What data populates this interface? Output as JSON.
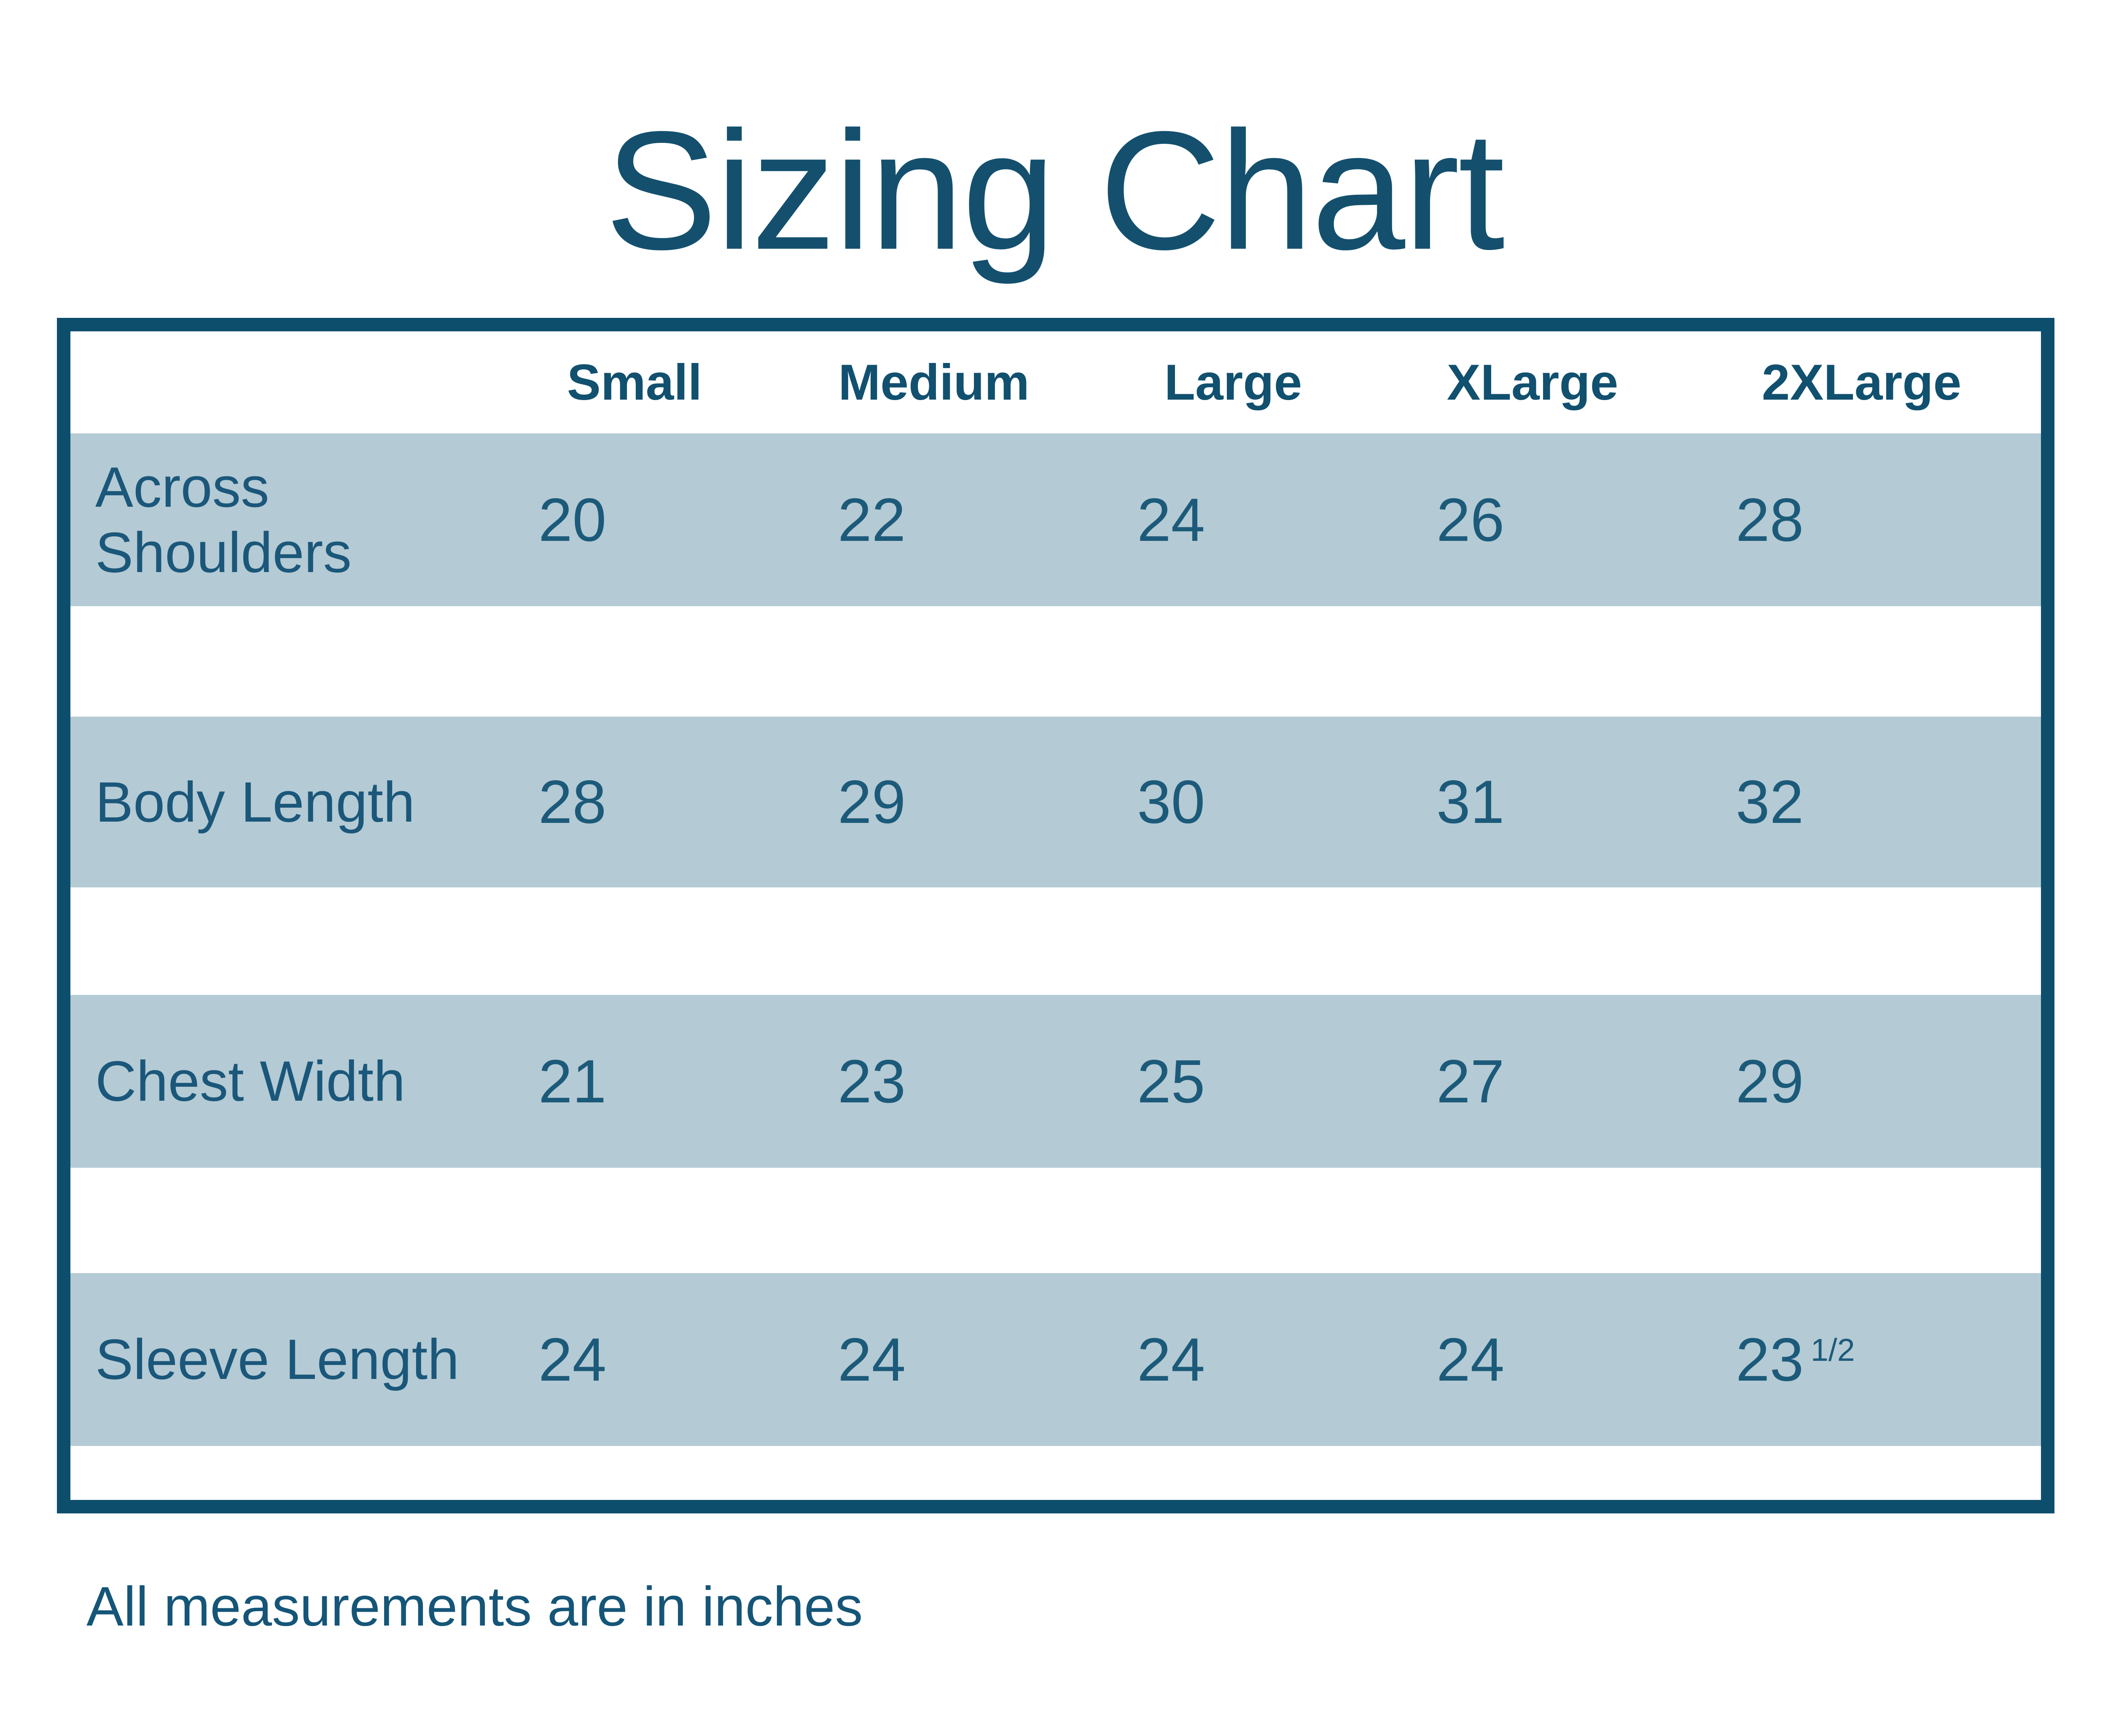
{
  "ui": {
    "title": "Sizing Chart",
    "footer": "All measurements are in inches",
    "columns": [
      "Small",
      "Medium",
      "Large",
      "XLarge",
      "2XLarge"
    ],
    "rows": [
      {
        "label": "Across Shoulders",
        "values": [
          "20",
          "22",
          "24",
          "26",
          "28"
        ]
      },
      {
        "label": "Body Length",
        "values": [
          "28",
          "29",
          "30",
          "31",
          "32"
        ]
      },
      {
        "label": "Chest Width",
        "values": [
          "21",
          "23",
          "25",
          "27",
          "29"
        ]
      },
      {
        "label": "Sleeve Length",
        "values": [
          "24",
          "24",
          "24",
          "24",
          {
            "base": "23",
            "sup": "1/2"
          }
        ]
      }
    ]
  },
  "chart_data": {
    "type": "table",
    "title": "Sizing Chart",
    "columns": [
      "Small",
      "Medium",
      "Large",
      "XLarge",
      "2XLarge"
    ],
    "rows": [
      {
        "label": "Across Shoulders",
        "values": [
          20,
          22,
          24,
          26,
          28
        ]
      },
      {
        "label": "Body Length",
        "values": [
          28,
          29,
          30,
          31,
          32
        ]
      },
      {
        "label": "Chest Width",
        "values": [
          21,
          23,
          25,
          27,
          29
        ]
      },
      {
        "label": "Sleeve Length",
        "values": [
          24,
          24,
          24,
          24,
          23.5
        ]
      }
    ],
    "note": "All measurements are in inches",
    "units": "inches"
  },
  "colors": {
    "border_dark_blue": "#0e4e6d",
    "title_blue": "#14506e",
    "header_text_blue": "#11506f",
    "body_text_blue": "#1c5a7a",
    "row_band_blue": "#b4cad4",
    "background": "#ffffff"
  }
}
